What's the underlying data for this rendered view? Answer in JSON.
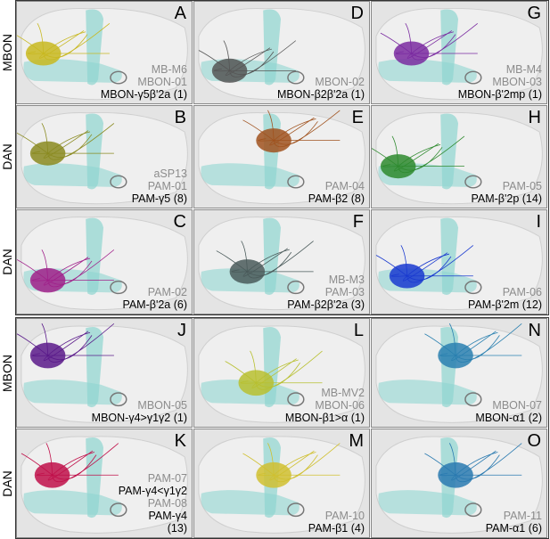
{
  "row_labels_top": [
    "MBON",
    "DAN",
    "DAN"
  ],
  "row_labels_bottom": [
    "MBON",
    "DAN"
  ],
  "panels": [
    {
      "letter": "A",
      "groups": [
        {
          "ids": [
            "MB-M6",
            "MBON-01"
          ],
          "names": [
            "MBON-γ5β'2a (1)"
          ]
        }
      ]
    },
    {
      "letter": "D",
      "groups": [
        {
          "ids": [
            "MBON-02"
          ],
          "names": [
            "MBON-β2β'2a (1)"
          ]
        }
      ]
    },
    {
      "letter": "G",
      "groups": [
        {
          "ids": [
            "MB-M4",
            "MBON-03"
          ],
          "names": [
            "MBON-β'2mp (1)"
          ]
        }
      ]
    },
    {
      "letter": "B",
      "groups": [
        {
          "ids": [
            "aSP13",
            "PAM-01"
          ],
          "names": [
            "PAM-γ5 (8)"
          ]
        }
      ]
    },
    {
      "letter": "E",
      "groups": [
        {
          "ids": [
            "PAM-04"
          ],
          "names": [
            "PAM-β2 (8)"
          ]
        }
      ]
    },
    {
      "letter": "H",
      "groups": [
        {
          "ids": [
            "PAM-05"
          ],
          "names": [
            "PAM-β'2p (14)"
          ]
        }
      ]
    },
    {
      "letter": "C",
      "groups": [
        {
          "ids": [
            "PAM-02"
          ],
          "names": [
            "PAM-β'2a (6)"
          ]
        }
      ]
    },
    {
      "letter": "F",
      "groups": [
        {
          "ids": [
            "MB-M3",
            "PAM-03"
          ],
          "names": [
            "PAM-β2β'2a (3)"
          ]
        }
      ]
    },
    {
      "letter": "I",
      "groups": [
        {
          "ids": [
            "PAM-06"
          ],
          "names": [
            "PAM-β'2m (12)"
          ]
        }
      ]
    },
    {
      "letter": "J",
      "groups": [
        {
          "ids": [
            "MBON-05"
          ],
          "names": [
            "MBON-γ4>γ1γ2 (1)"
          ]
        }
      ]
    },
    {
      "letter": "L",
      "groups": [
        {
          "ids": [
            "MB-MV2",
            "MBON-06"
          ],
          "names": [
            "MBON-β1>α (1)"
          ]
        }
      ]
    },
    {
      "letter": "N",
      "groups": [
        {
          "ids": [
            "MBON-07"
          ],
          "names": [
            "MBON-α1 (2)"
          ]
        }
      ]
    },
    {
      "letter": "K",
      "groups": [
        {
          "ids": [
            "PAM-07"
          ],
          "names": [
            "PAM-γ4<γ1γ2"
          ]
        },
        {
          "ids": [
            "PAM-08"
          ],
          "names": [
            "PAM-γ4",
            "(13)"
          ]
        }
      ]
    },
    {
      "letter": "M",
      "groups": [
        {
          "ids": [
            "PAM-10"
          ],
          "names": [
            "PAM-β1 (4)"
          ]
        }
      ]
    },
    {
      "letter": "O",
      "groups": [
        {
          "ids": [
            "PAM-11"
          ],
          "names": [
            "PAM-α1 (6)"
          ]
        }
      ]
    }
  ]
}
